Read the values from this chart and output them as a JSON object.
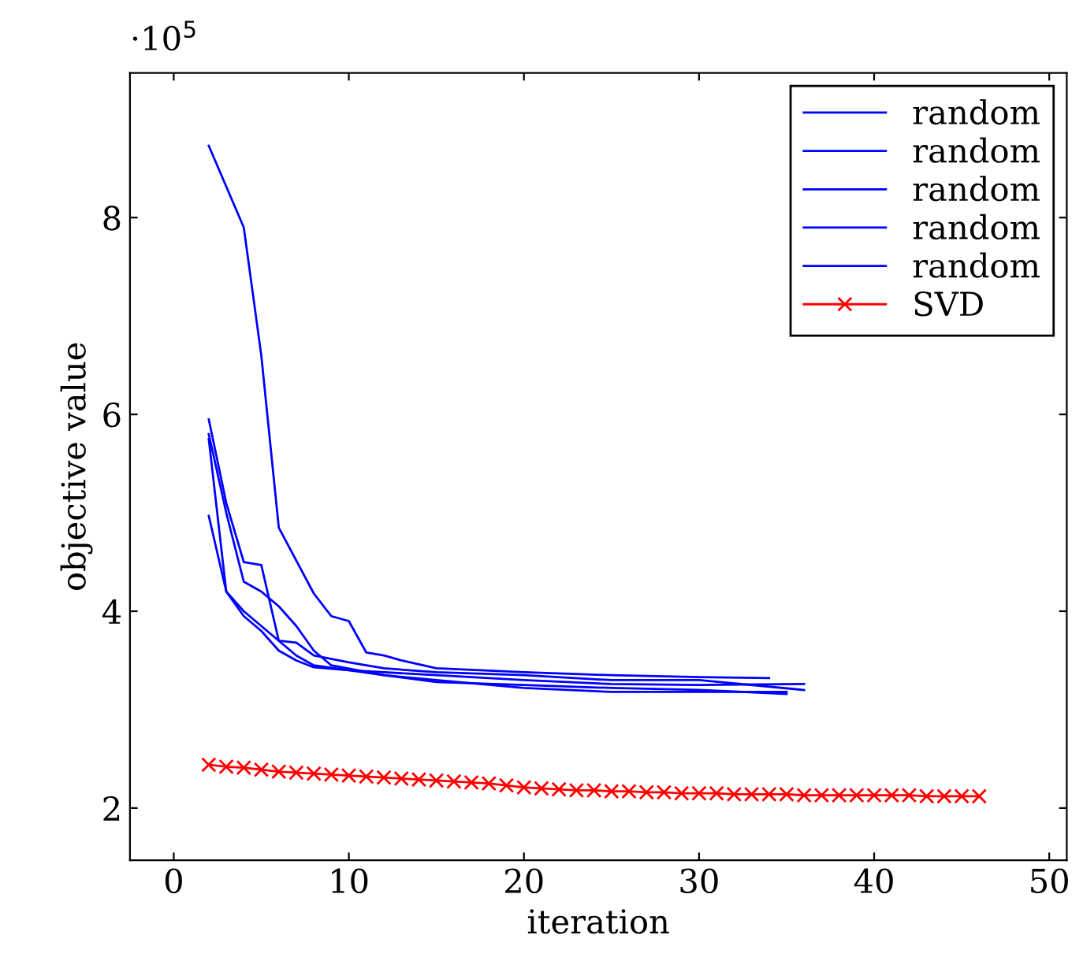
{
  "chart_data": {
    "type": "line",
    "xlabel": "iteration",
    "ylabel": "objective value",
    "annotations": [
      "·10$^{5}$"
    ],
    "xlim": [
      -2.5,
      51
    ],
    "xticks": [
      0,
      10,
      20,
      30,
      40,
      50
    ],
    "ylim": [
      1.47,
      9.47
    ],
    "yticks": [
      2,
      4,
      6,
      8
    ],
    "grid": false,
    "legend": "top right",
    "line_style": "solid",
    "series": [
      {
        "name": "random",
        "color": "#0000ff",
        "marker": "none",
        "x": [
          2,
          4,
          5,
          6,
          8,
          9,
          10,
          11,
          12,
          13,
          15,
          20,
          25,
          30,
          34
        ],
        "values": [
          8.73,
          7.9,
          6.6,
          4.85,
          4.18,
          3.95,
          3.9,
          3.58,
          3.55,
          3.5,
          3.42,
          3.38,
          3.35,
          3.33,
          3.32
        ]
      },
      {
        "name": "random",
        "color": "#0000ff",
        "marker": "none",
        "x": [
          2,
          3,
          4,
          5,
          6,
          7,
          8,
          10,
          15,
          20,
          25,
          30,
          36
        ],
        "values": [
          5.95,
          5.1,
          4.5,
          4.47,
          3.7,
          3.55,
          3.45,
          3.4,
          3.35,
          3.3,
          3.26,
          3.25,
          3.26
        ]
      },
      {
        "name": "random",
        "color": "#0000ff",
        "marker": "none",
        "x": [
          2,
          3,
          4,
          5,
          6,
          7,
          8,
          9,
          12,
          15,
          20,
          25,
          30,
          35
        ],
        "values": [
          5.8,
          5.0,
          4.3,
          4.2,
          4.05,
          3.85,
          3.6,
          3.45,
          3.35,
          3.28,
          3.25,
          3.22,
          3.2,
          3.16
        ]
      },
      {
        "name": "random",
        "color": "#0000ff",
        "marker": "none",
        "x": [
          2,
          3,
          4,
          5,
          6,
          7,
          8,
          10,
          12,
          15,
          20,
          25,
          30,
          36
        ],
        "values": [
          5.75,
          4.2,
          4.0,
          3.85,
          3.7,
          3.68,
          3.55,
          3.48,
          3.42,
          3.38,
          3.35,
          3.3,
          3.3,
          3.2
        ]
      },
      {
        "name": "random",
        "color": "#0000ff",
        "marker": "none",
        "x": [
          2,
          3,
          4,
          5,
          6,
          7,
          8,
          10,
          12,
          15,
          20,
          25,
          30,
          35
        ],
        "values": [
          4.97,
          4.2,
          3.95,
          3.8,
          3.6,
          3.5,
          3.43,
          3.4,
          3.35,
          3.3,
          3.22,
          3.18,
          3.18,
          3.18
        ]
      },
      {
        "name": "SVD",
        "color": "#ff0000",
        "marker": "cross",
        "x": [
          2,
          3,
          4,
          5,
          6,
          7,
          8,
          9,
          10,
          11,
          12,
          13,
          14,
          15,
          16,
          17,
          18,
          19,
          20,
          21,
          22,
          23,
          24,
          25,
          26,
          27,
          28,
          29,
          30,
          31,
          32,
          33,
          34,
          35,
          36,
          37,
          38,
          39,
          40,
          41,
          42,
          43,
          44,
          45,
          46
        ],
        "values": [
          2.44,
          2.42,
          2.41,
          2.39,
          2.37,
          2.36,
          2.35,
          2.34,
          2.33,
          2.32,
          2.31,
          2.3,
          2.29,
          2.28,
          2.27,
          2.26,
          2.25,
          2.23,
          2.21,
          2.2,
          2.19,
          2.18,
          2.18,
          2.17,
          2.17,
          2.16,
          2.16,
          2.15,
          2.15,
          2.15,
          2.14,
          2.14,
          2.14,
          2.14,
          2.13,
          2.13,
          2.13,
          2.13,
          2.13,
          2.13,
          2.13,
          2.12,
          2.12,
          2.12,
          2.12
        ]
      }
    ]
  }
}
